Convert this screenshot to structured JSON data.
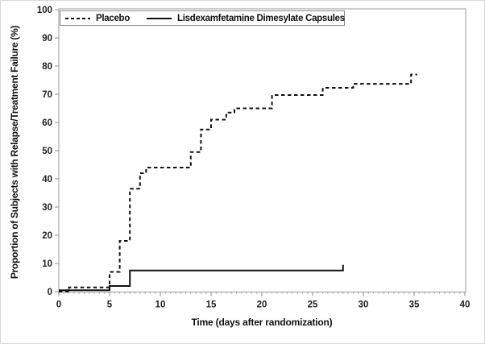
{
  "figure": {
    "x_axis_title": "Time (days after randomization)",
    "y_axis_title": "Proportion of Subjects with Relapse/Treatment Failure (%)"
  },
  "legend": {
    "items": [
      {
        "label": "Placebo",
        "line_style": "dashed"
      },
      {
        "label": "Lisdexamfetamine Dimesylate Capsules",
        "line_style": "solid"
      }
    ]
  },
  "colors": {
    "curve": "#111111",
    "frame": "#9a9a9a",
    "major_tick": "#8a8a8a",
    "minor_tick": "#b5b5b5",
    "tick_label": "#222222"
  },
  "chart_data": {
    "type": "line",
    "subtype": "kaplan-meier-step",
    "title": "",
    "xlabel": "Time (days after randomization)",
    "ylabel": "Proportion of Subjects with Relapse/Treatment Failure (%)",
    "xlim": [
      0,
      40
    ],
    "ylim": [
      0,
      100
    ],
    "x_ticks": [
      0,
      5,
      10,
      15,
      20,
      25,
      30,
      35,
      40
    ],
    "y_ticks": [
      0,
      10,
      20,
      30,
      40,
      50,
      60,
      70,
      80,
      90,
      100
    ],
    "x_minor_tick_interval": 0.5,
    "grid": false,
    "legend_position": "top-left-inside",
    "series": [
      {
        "name": "Placebo",
        "style": "dashed",
        "steps": [
          [
            0,
            0
          ],
          [
            1,
            1.5
          ],
          [
            5,
            7
          ],
          [
            6,
            18
          ],
          [
            7,
            36.5
          ],
          [
            8,
            42
          ],
          [
            8.6,
            44
          ],
          [
            13,
            49.5
          ],
          [
            14,
            57.5
          ],
          [
            15,
            61
          ],
          [
            16.5,
            63.5
          ],
          [
            17.3,
            65
          ],
          [
            21,
            69.7
          ],
          [
            26,
            72.3
          ],
          [
            29,
            73.7
          ],
          [
            34.7,
            77
          ]
        ],
        "end_x": 35.3
      },
      {
        "name": "Lisdexamfetamine Dimesylate Capsules",
        "style": "solid",
        "steps": [
          [
            0,
            0.5
          ],
          [
            5,
            2
          ],
          [
            7,
            7.5
          ],
          [
            28,
            9.5
          ]
        ],
        "end_x": 28
      }
    ]
  }
}
